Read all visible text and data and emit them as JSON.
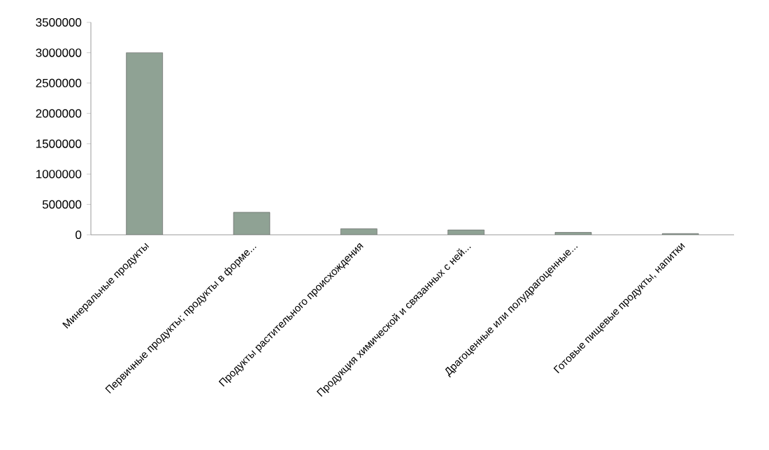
{
  "chart_data": {
    "type": "bar",
    "categories": [
      "Минеральные продукты",
      "Первичные продукты; продукты в форме...",
      "Продукты растительного происхождения",
      "Продукция химической и связанных с ней...",
      "Драгоценные или полудрагоценные...",
      "Готовые пищевые продукты, напитки"
    ],
    "values": [
      3000000,
      370000,
      100000,
      80000,
      40000,
      20000
    ],
    "color": "#8fa294",
    "ylim": [
      0,
      3500000
    ],
    "yticks": [
      0,
      500000,
      1000000,
      1500000,
      2000000,
      2500000,
      3000000,
      3500000
    ],
    "grid": false
  }
}
